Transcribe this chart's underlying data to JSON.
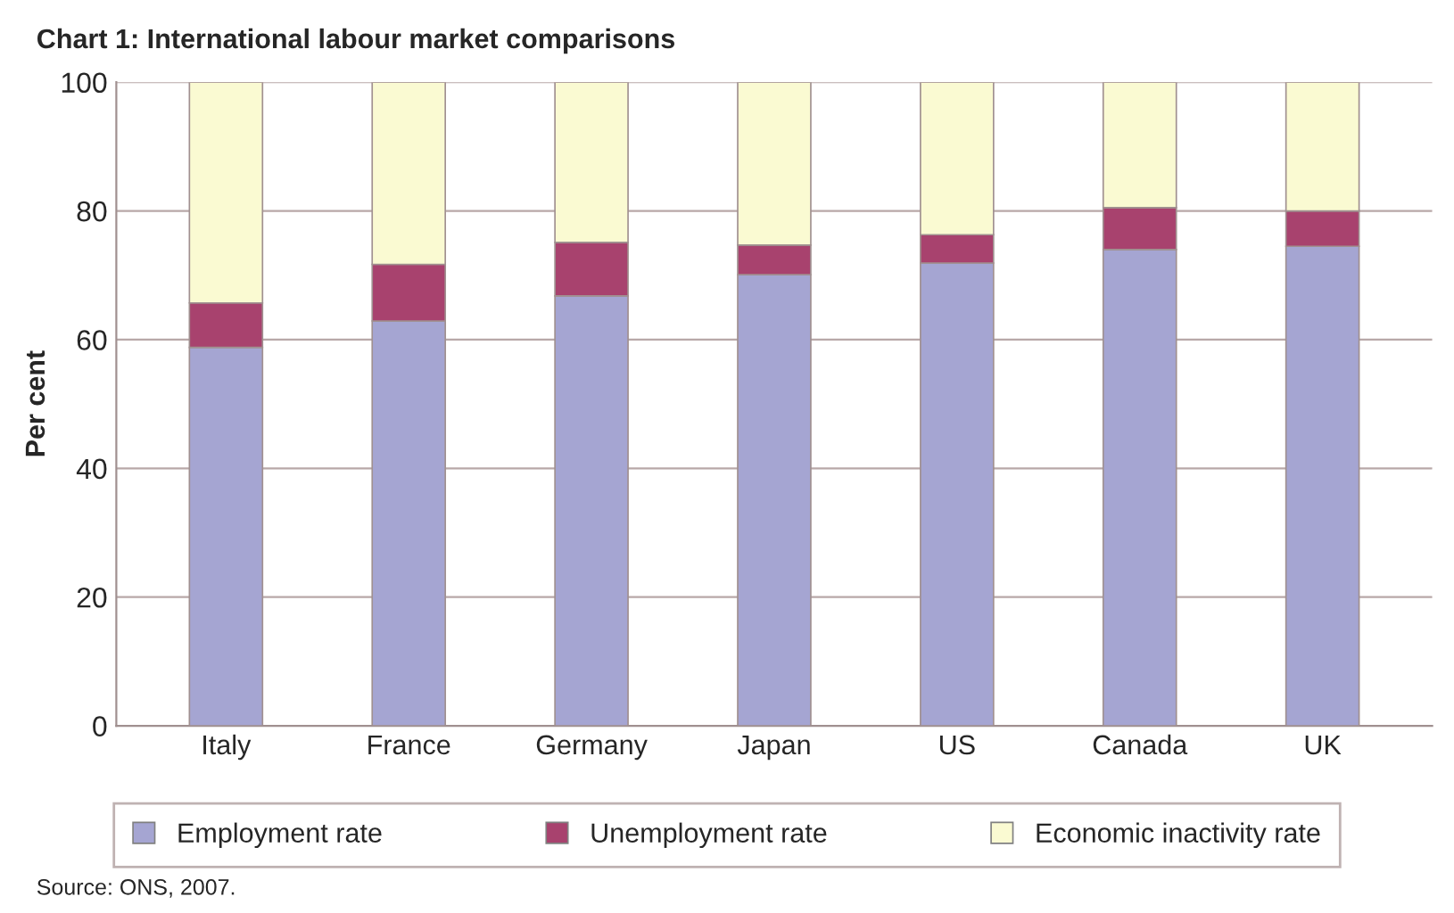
{
  "chart_data": {
    "type": "bar",
    "title": "Chart 1: International labour market comparisons",
    "ylabel": "Per cent",
    "categories": [
      "Italy",
      "France",
      "Germany",
      "Japan",
      "US",
      "Canada",
      "UK"
    ],
    "stacked": true,
    "series": [
      {
        "name": "Employment rate",
        "color": "#a5a5d2",
        "values": [
          58.8,
          62.9,
          66.8,
          70.1,
          71.9,
          74.0,
          74.5
        ]
      },
      {
        "name": "Unemployment rate",
        "color": "#a8426e",
        "values": [
          6.9,
          8.8,
          8.3,
          4.6,
          4.4,
          6.5,
          5.5
        ]
      },
      {
        "name": "Economic inactivity rate",
        "color": "#fafad2",
        "values": [
          34.3,
          28.3,
          24.9,
          25.3,
          23.7,
          19.5,
          20.0
        ]
      }
    ],
    "ylim": [
      0,
      100
    ],
    "yticks": [
      0,
      20,
      40,
      60,
      80,
      100
    ],
    "grid": "y",
    "legend": "bottom",
    "annotations": [
      "Source: ONS, 2007."
    ]
  }
}
